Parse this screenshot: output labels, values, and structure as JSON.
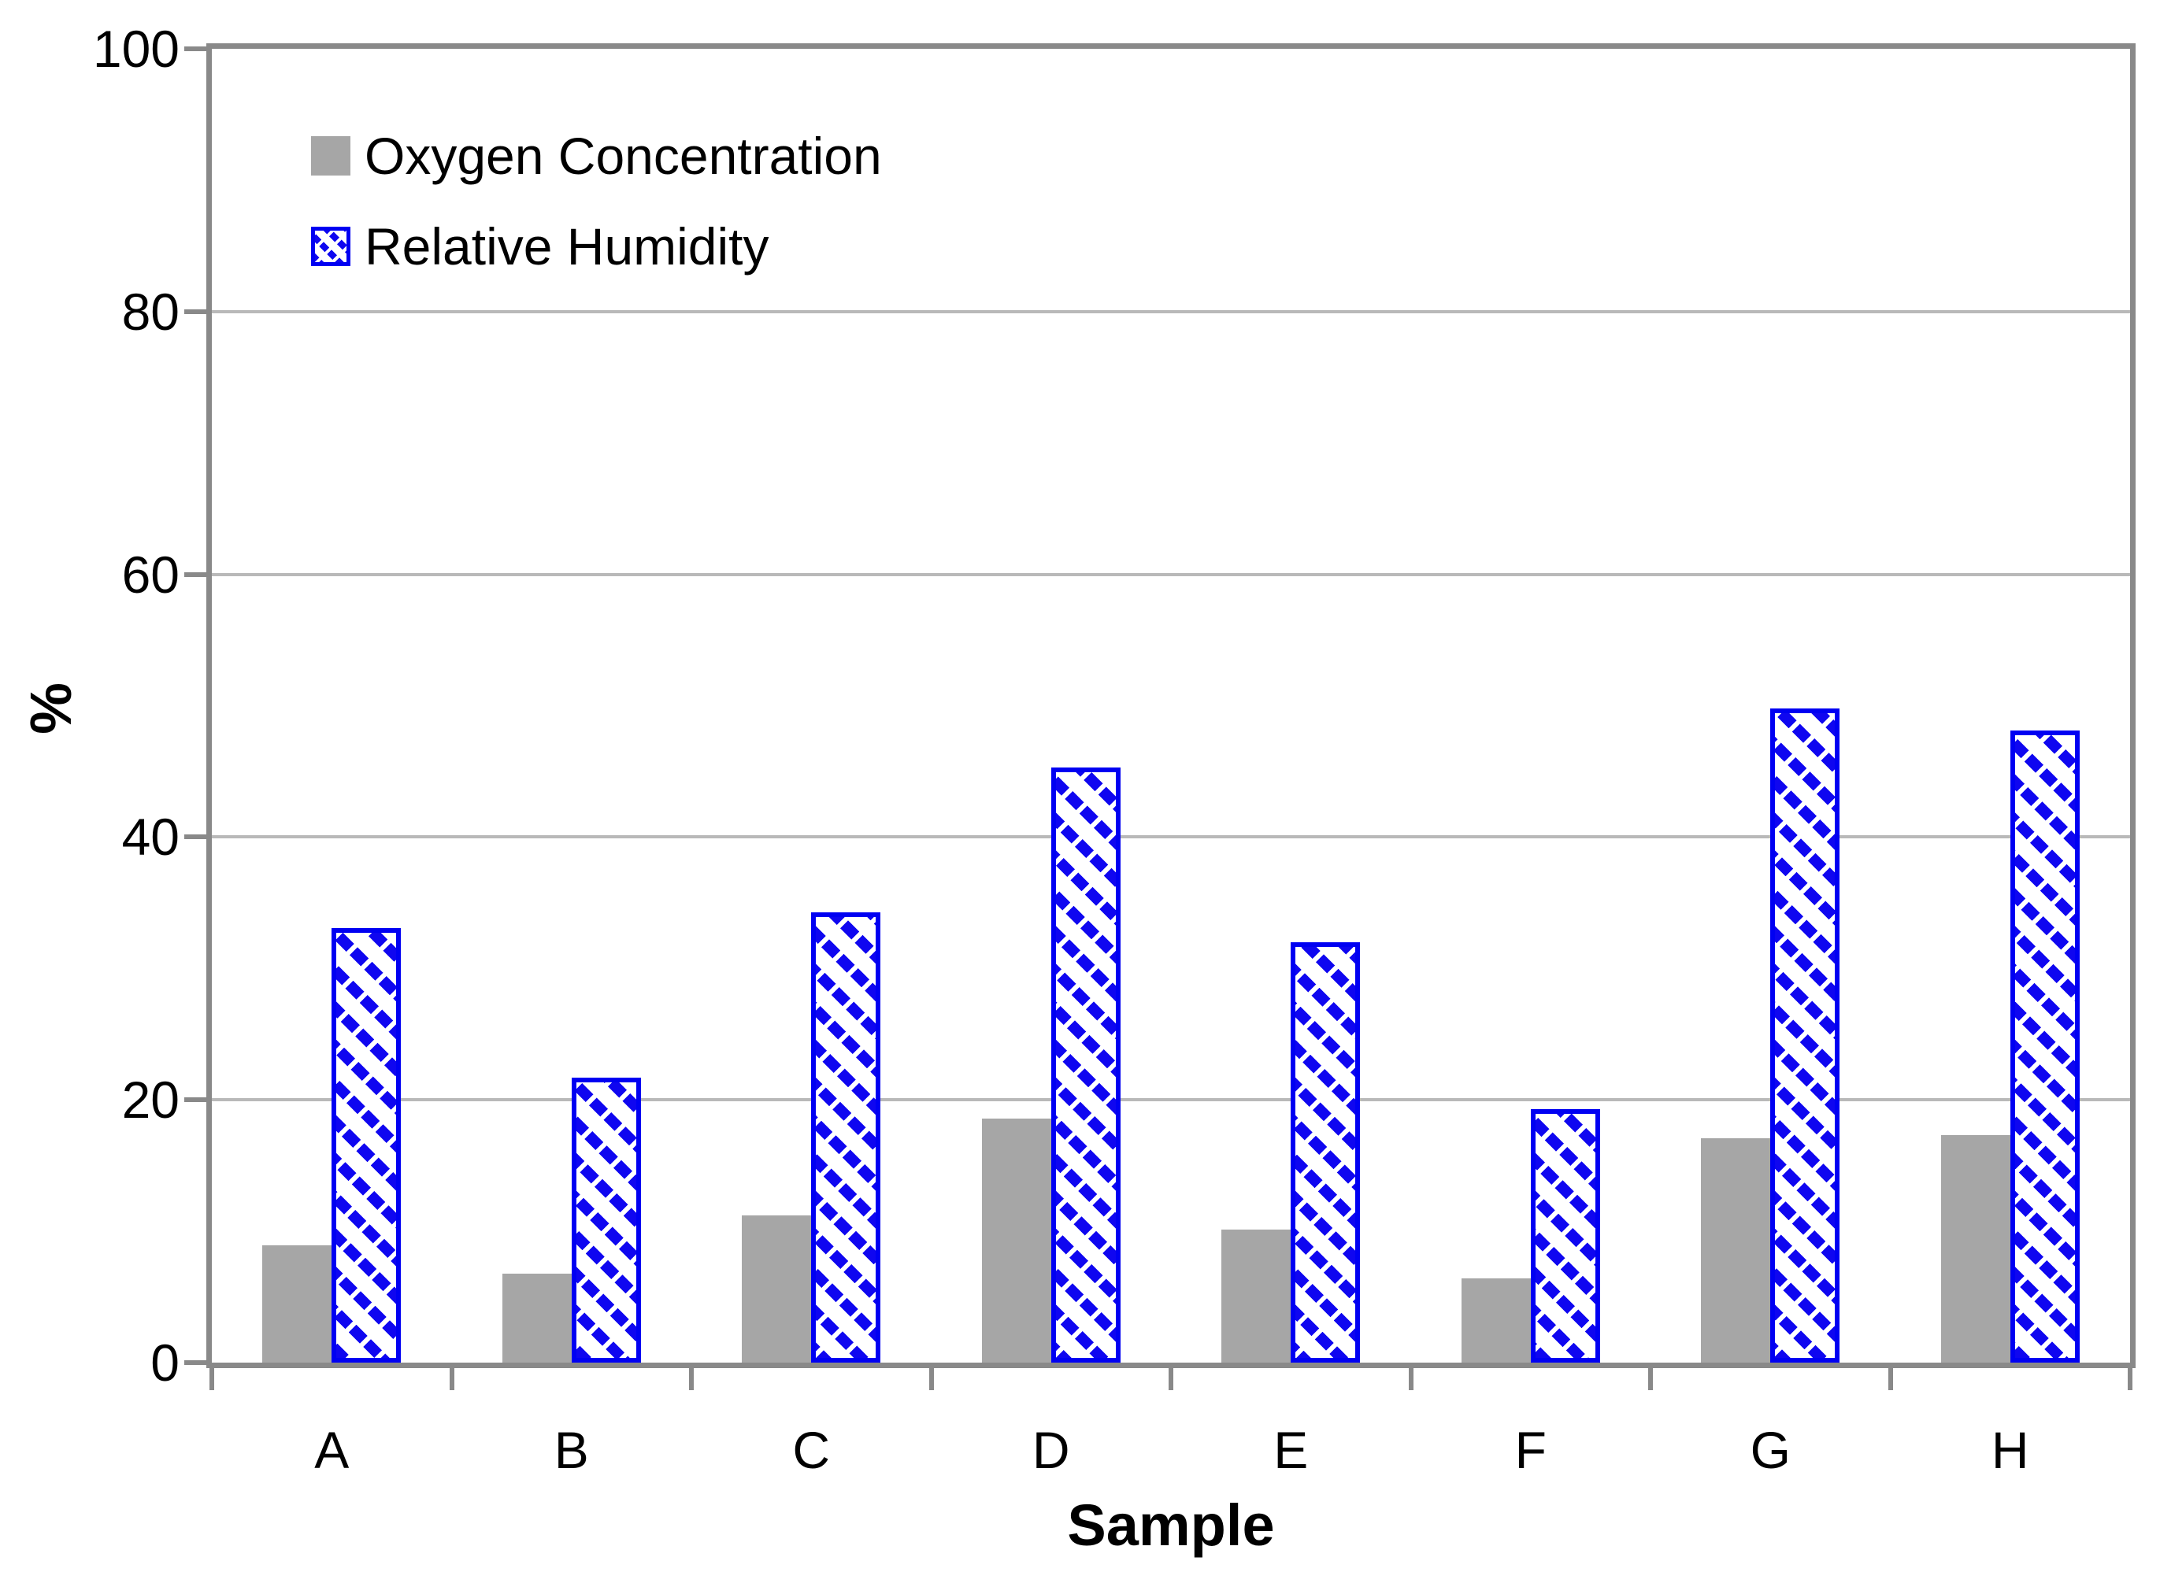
{
  "chart_data": {
    "type": "bar",
    "title": "",
    "categories": [
      "A",
      "B",
      "C",
      "D",
      "E",
      "F",
      "G",
      "H"
    ],
    "series": [
      {
        "name": "Oxygen Concentration",
        "values": [
          8.9,
          6.8,
          11.2,
          18.6,
          10.1,
          6.4,
          17.1,
          17.3
        ],
        "color": "#a6a6a6",
        "pattern": "solid"
      },
      {
        "name": "Relative Humidity",
        "values": [
          33.1,
          21.7,
          34.3,
          45.3,
          32.0,
          19.3,
          49.8,
          48.1
        ],
        "color": "#0000ff",
        "pattern": "diagonal-hatch"
      }
    ],
    "xlabel": "Sample",
    "ylabel": "%",
    "ylim": [
      0,
      100
    ],
    "ytick_step": 20,
    "ytick_labels": [
      "0",
      "20",
      "40",
      "60",
      "80",
      "100"
    ],
    "grid": true,
    "legend_position": "top-left-inside",
    "colors": {
      "axis": "#898989",
      "gridline": "#b9b9b9",
      "bar_gray": "#a6a6a6",
      "bar_blue": "#0000ff",
      "text": "#000000",
      "background": "#ffffff"
    }
  }
}
